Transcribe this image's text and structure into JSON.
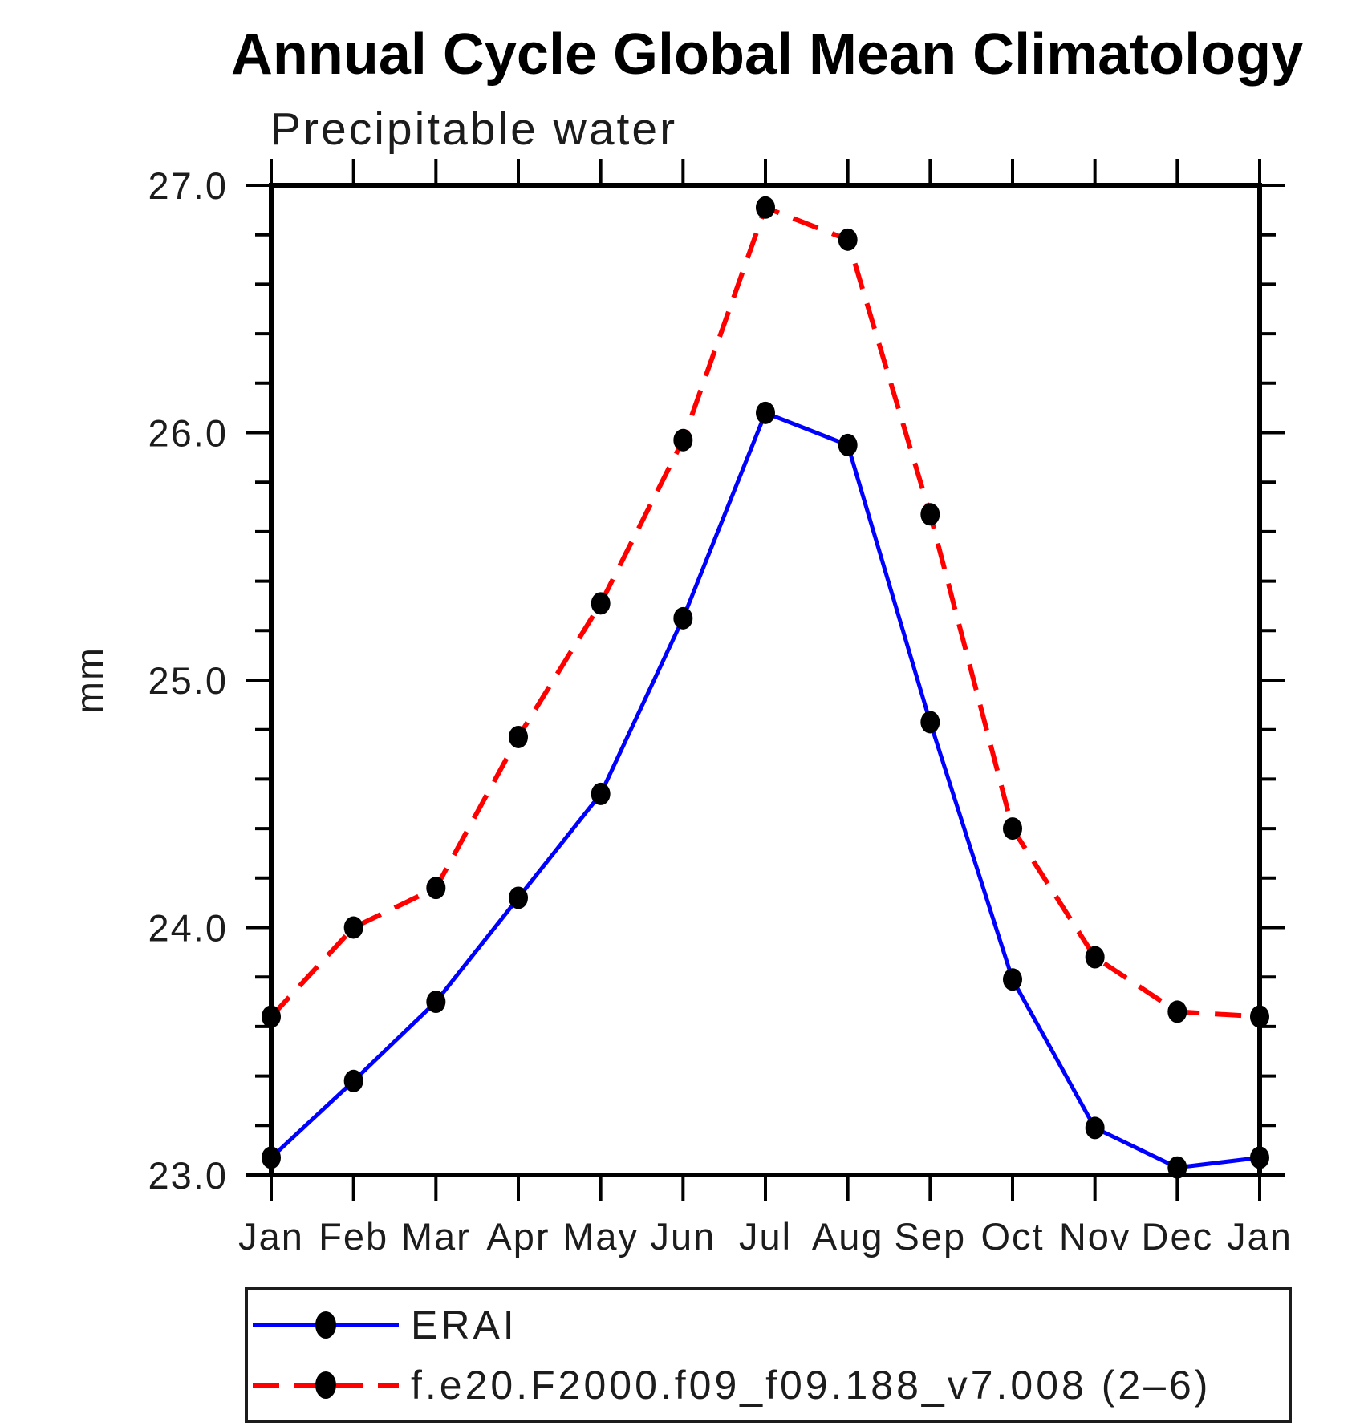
{
  "page": {
    "background_color": "#ffffff",
    "text_color": "#1c1c1c"
  },
  "chart_data": {
    "type": "line",
    "title": "Annual Cycle Global Mean Climatology",
    "subtitle": "Precipitable water",
    "xlabel": "",
    "ylabel": "mm",
    "categories": [
      "Jan",
      "Feb",
      "Mar",
      "Apr",
      "May",
      "Jun",
      "Jul",
      "Aug",
      "Sep",
      "Oct",
      "Nov",
      "Dec",
      "Jan"
    ],
    "ylim": [
      23.0,
      27.0
    ],
    "ytick_values": [
      23.0,
      24.0,
      25.0,
      26.0,
      27.0
    ],
    "ytick_labels": [
      "23.0",
      "24.0",
      "25.0",
      "26.0",
      "27.0"
    ],
    "ytick_minor_step": 0.2,
    "grid": false,
    "legend_position": "bottom-box",
    "series": [
      {
        "name": "ERAI",
        "color": "#0000ff",
        "line_style": "solid",
        "marker": "filled-black-dot",
        "values": [
          23.07,
          23.38,
          23.7,
          24.12,
          24.54,
          25.25,
          26.08,
          25.95,
          24.83,
          23.79,
          23.19,
          23.03,
          23.07
        ]
      },
      {
        "name": "f.e20.F2000.f09_f09.188_v7.008 (2–6)",
        "color": "#ff0000",
        "line_style": "dashed",
        "marker": "filled-black-dot",
        "values": [
          23.64,
          24.0,
          24.16,
          24.77,
          25.31,
          25.97,
          26.91,
          26.78,
          25.67,
          24.4,
          23.88,
          23.66,
          23.64
        ]
      }
    ],
    "marker_color": "#000000",
    "axis_color": "#000000"
  }
}
